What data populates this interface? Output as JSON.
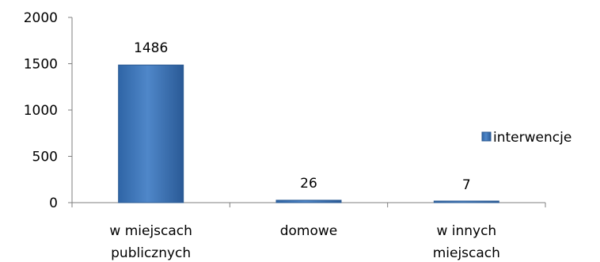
{
  "chart_data": {
    "type": "bar",
    "categories": [
      [
        "w miejscach",
        "publicznych"
      ],
      [
        "domowe"
      ],
      [
        "w innych",
        "miejscach"
      ]
    ],
    "series": [
      {
        "name": "interwencje",
        "values": [
          1486,
          26,
          7
        ]
      }
    ],
    "data_labels": [
      "1486",
      "26",
      "7"
    ],
    "y_ticks": [
      "0",
      "500",
      "1000",
      "1500",
      "2000"
    ],
    "ylim": [
      0,
      2000
    ],
    "grid": false,
    "legend_position": "right",
    "colors": {
      "bar_top": "#4f87c9",
      "bar_bottom": "#2a5f9e",
      "bar_edge": "#2b5a92",
      "axis": "#7f7f7f"
    }
  }
}
